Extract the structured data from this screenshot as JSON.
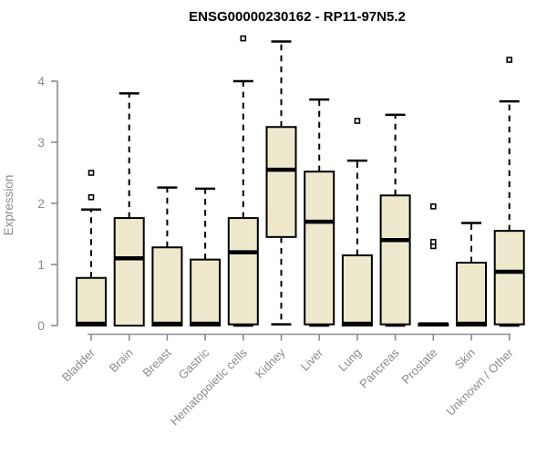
{
  "title": "ENSG00000230162 - RP11-97N5.2",
  "colors": {
    "box_fill": "#EEE8CD",
    "box_stroke": "#000000",
    "median_color": "#000000",
    "whisker_color": "#000000",
    "outlier_fill": "#FFFFFF",
    "axis_color": "#8B8B8B",
    "label_color": "#8B8B8B",
    "title_color": "#000000",
    "background": "#FFFFFF"
  },
  "chart_data": {
    "type": "boxplot",
    "title": "ENSG00000230162 - RP11-97N5.2",
    "xlabel": "",
    "ylabel": "Expression",
    "ylim": [
      0,
      4.7
    ],
    "yticks": [
      0,
      1,
      2,
      3,
      4
    ],
    "grid": false,
    "legend": "none",
    "categories": [
      "Bladder",
      "Brain",
      "Breast",
      "Gastric",
      "Hematopoietic cells",
      "Kidney",
      "Liver",
      "Lung",
      "Pancreas",
      "Prostate",
      "Skin",
      "Unknown / Other"
    ],
    "series": [
      {
        "category": "Bladder",
        "whisker_low": 0,
        "q1": 0,
        "median": 0.03,
        "q3": 0.78,
        "whisker_high": 1.9,
        "outliers": [
          2.1,
          2.5
        ]
      },
      {
        "category": "Brain",
        "whisker_low": 0,
        "q1": 0,
        "median": 1.1,
        "q3": 1.76,
        "whisker_high": 3.8,
        "outliers": []
      },
      {
        "category": "Breast",
        "whisker_low": 0,
        "q1": 0,
        "median": 0.03,
        "q3": 1.28,
        "whisker_high": 2.26,
        "outliers": []
      },
      {
        "category": "Gastric",
        "whisker_low": 0,
        "q1": 0,
        "median": 0.03,
        "q3": 1.08,
        "whisker_high": 2.24,
        "outliers": []
      },
      {
        "category": "Hematopoietic cells",
        "whisker_low": 0,
        "q1": 0.02,
        "median": 1.2,
        "q3": 1.76,
        "whisker_high": 4.0,
        "outliers": [
          4.7
        ]
      },
      {
        "category": "Kidney",
        "whisker_low": 0.02,
        "q1": 1.45,
        "median": 2.55,
        "q3": 3.25,
        "whisker_high": 4.65,
        "outliers": []
      },
      {
        "category": "Liver",
        "whisker_low": 0,
        "q1": 0.02,
        "median": 1.7,
        "q3": 2.52,
        "whisker_high": 3.7,
        "outliers": []
      },
      {
        "category": "Lung",
        "whisker_low": 0,
        "q1": 0,
        "median": 0.03,
        "q3": 1.15,
        "whisker_high": 2.7,
        "outliers": [
          3.35
        ]
      },
      {
        "category": "Pancreas",
        "whisker_low": 0,
        "q1": 0.02,
        "median": 1.4,
        "q3": 2.13,
        "whisker_high": 3.45,
        "outliers": []
      },
      {
        "category": "Prostate",
        "whisker_low": 0,
        "q1": 0,
        "median": 0.02,
        "q3": 0.03,
        "whisker_high": 0.03,
        "outliers": [
          1.3,
          1.37,
          1.95
        ]
      },
      {
        "category": "Skin",
        "whisker_low": 0,
        "q1": 0,
        "median": 0.03,
        "q3": 1.03,
        "whisker_high": 1.68,
        "outliers": []
      },
      {
        "category": "Unknown / Other",
        "whisker_low": 0,
        "q1": 0.02,
        "median": 0.88,
        "q3": 1.55,
        "whisker_high": 3.67,
        "outliers": [
          4.35
        ]
      }
    ]
  }
}
